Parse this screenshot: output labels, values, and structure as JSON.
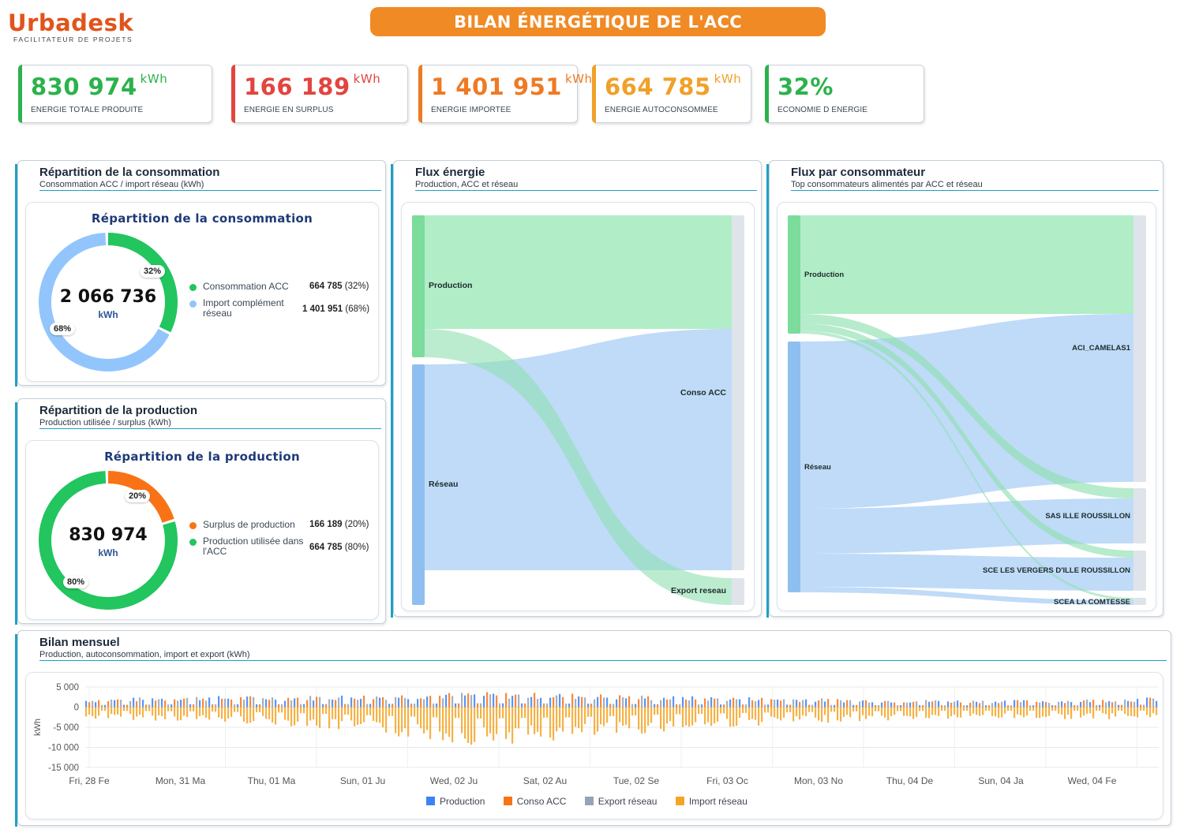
{
  "header": {
    "logo_text": "Urbadesk",
    "logo_tagline": "FACILITATEUR DE PROJETS",
    "title": "BILAN ÉNERGÉTIQUE DE L'ACC"
  },
  "kpis": [
    {
      "value": "830 974",
      "unit": "kWh",
      "label": "ENERGIE TOTALE PRODUITE",
      "color": "#2cb24c"
    },
    {
      "value": "166 189",
      "unit": "kWh",
      "label": "ENERGIE EN SURPLUS",
      "color": "#e2453f"
    },
    {
      "value": "1 401 951",
      "unit": "kWh",
      "label": "ENERGIE IMPORTEE",
      "color": "#ee7a24"
    },
    {
      "value": "664 785",
      "unit": "kWh",
      "label": "ENERGIE AUTOCONSOMMEE",
      "color": "#f0a12a"
    },
    {
      "value": "32%",
      "unit": "",
      "label": "ECONOMIE D ENERGIE",
      "color": "#2cb24c"
    }
  ],
  "consumption_panel": {
    "title": "Répartition de la consommation",
    "subtitle": "Consommation ACC / import réseau (kWh)",
    "chart_title": "Répartition de la consommation",
    "center_value": "2 066 736",
    "center_unit": "kWh",
    "tag_small": "32%",
    "tag_large": "68%",
    "legend": [
      {
        "label": "Consommation ACC",
        "value": "664 785",
        "pct": "(32%)",
        "color": "#22c55e"
      },
      {
        "label": "Import complément réseau",
        "value": "1 401 951",
        "pct": "(68%)",
        "color": "#93c5fd"
      }
    ]
  },
  "production_panel": {
    "title": "Répartition de la production",
    "subtitle": "Production utilisée / surplus (kWh)",
    "chart_title": "Répartition de la production",
    "center_value": "830 974",
    "center_unit": "kWh",
    "tag_small": "20%",
    "tag_large": "80%",
    "legend": [
      {
        "label": "Surplus de production",
        "value": "166 189",
        "pct": "(20%)",
        "color": "#f97316"
      },
      {
        "label": "Production utilisée dans l'ACC",
        "value": "664 785",
        "pct": "(80%)",
        "color": "#22c55e"
      }
    ]
  },
  "flux_panel": {
    "title": "Flux énergie",
    "subtitle": "Production, ACC et réseau",
    "nodes": {
      "production": "Production",
      "reseau": "Réseau",
      "conso": "Conso ACC",
      "export": "Export reseau"
    }
  },
  "consumer_panel": {
    "title": "Flux par consommateur",
    "subtitle": "Top consommateurs alimentés par ACC et réseau",
    "nodes": {
      "production": "Production",
      "reseau": "Réseau",
      "c1": "ACI_CAMELAS1",
      "c2": "SAS ILLE ROUSSILLON",
      "c3": "SCE LES VERGERS D'ILLE ROUSSILLON",
      "c4": "SCEA LA COMTESSE"
    }
  },
  "monthly_panel": {
    "title": "Bilan mensuel",
    "subtitle": "Production, autoconsommation, import et export (kWh)"
  },
  "chart_data": [
    {
      "type": "pie",
      "title": "Répartition de la consommation",
      "labels": [
        "Consommation ACC",
        "Import complément réseau"
      ],
      "values": [
        664785,
        1401951
      ],
      "total": 2066736
    },
    {
      "type": "pie",
      "title": "Répartition de la production",
      "labels": [
        "Surplus de production",
        "Production utilisée dans l'ACC"
      ],
      "values": [
        166189,
        664785
      ],
      "total": 830974
    },
    {
      "type": "bar",
      "ylabel": "kWh",
      "ylim": [
        -15000,
        5000
      ],
      "yticks": [
        "5 000",
        "0",
        "-5 000",
        "-10 000",
        "-15 000"
      ],
      "xticks": [
        "Fri, 28 Fe",
        "Mon, 31 Ma",
        "Thu, 01 Ma",
        "Sun, 01 Ju",
        "Wed, 02 Ju",
        "Sat, 02 Au",
        "Tue, 02 Se",
        "Fri, 03 Oc",
        "Mon, 03 No",
        "Thu, 04 De",
        "Sun, 04 Ja",
        "Wed, 04 Fe"
      ],
      "series": [
        {
          "name": "Production",
          "color": "#3b82f6"
        },
        {
          "name": "Conso ACC",
          "color": "#f97316"
        },
        {
          "name": "Export réseau",
          "color": "#94a3b8"
        },
        {
          "name": "Import réseau",
          "color": "#f5a524"
        }
      ],
      "envelope": {
        "positive_max": [
          2000,
          2800,
          2800,
          3200,
          3800,
          3500,
          2800,
          2500,
          2000,
          1800,
          1800,
          2500
        ],
        "import_min": [
          -3000,
          -3500,
          -4500,
          -7000,
          -9500,
          -8500,
          -6000,
          -4500,
          -3500,
          -3000,
          -3000,
          -3000
        ]
      }
    }
  ]
}
